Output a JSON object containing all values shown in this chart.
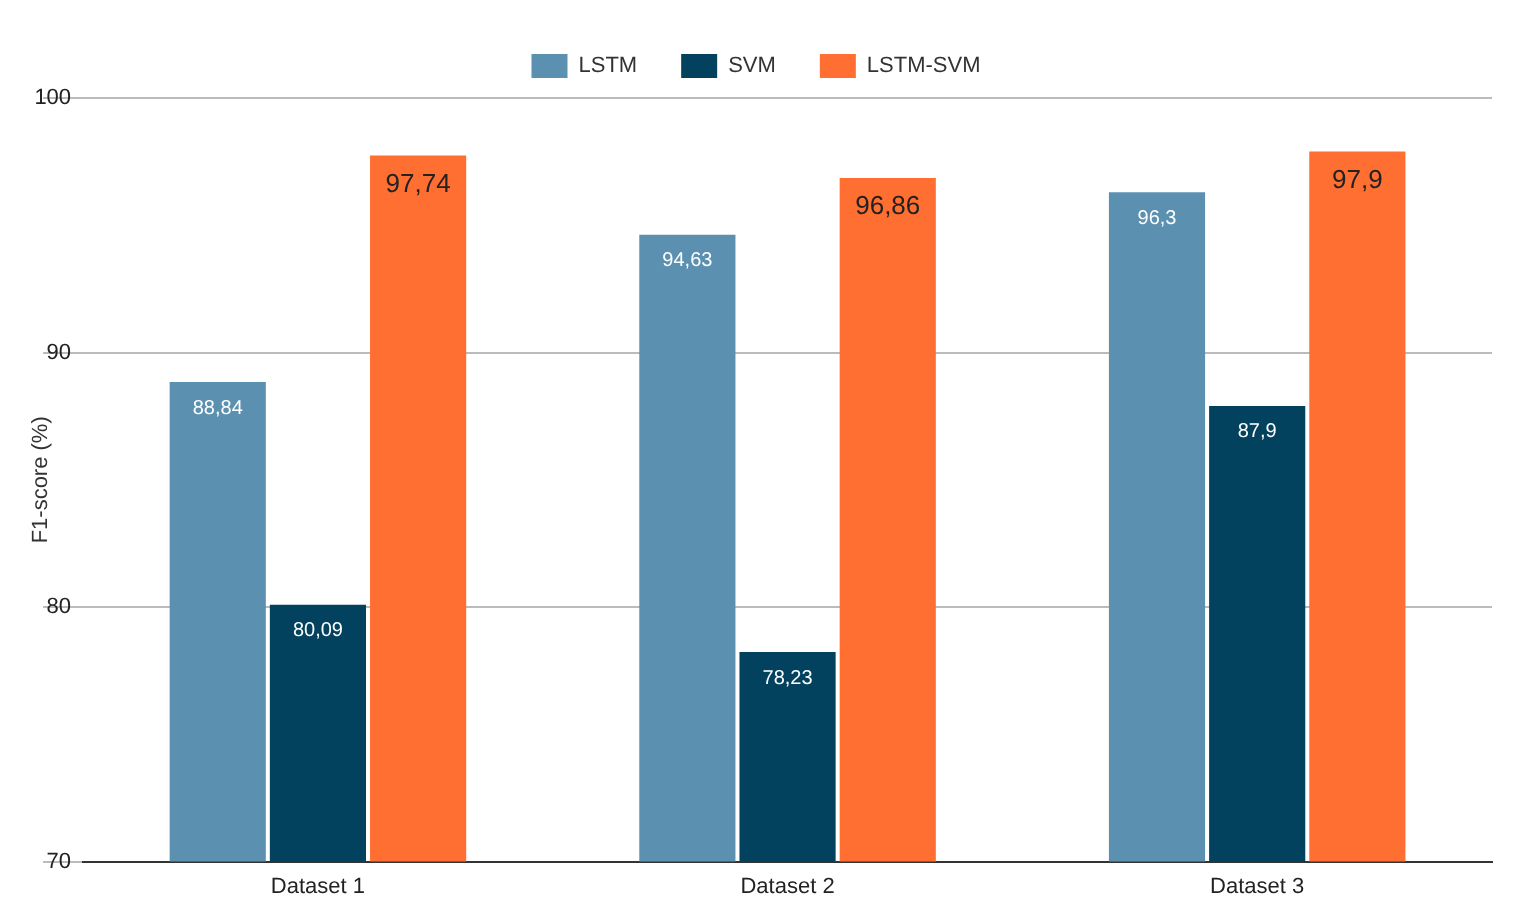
{
  "chart_data": {
    "type": "bar",
    "ylabel": "F1-score (%)",
    "categories": [
      "Dataset 1",
      "Dataset 2",
      "Dataset 3"
    ],
    "series": [
      {
        "name": "LSTM",
        "color": "#5b90b0",
        "values": [
          88.84,
          94.63,
          96.3
        ],
        "value_labels": [
          "88,84",
          "94,63",
          "96,3"
        ]
      },
      {
        "name": "SVM",
        "color": "#03425e",
        "values": [
          80.09,
          78.23,
          87.9
        ],
        "value_labels": [
          "80,09",
          "78,23",
          "87,9"
        ]
      },
      {
        "name": "LSTM-SVM",
        "color": "#ff6f31",
        "values": [
          97.74,
          96.86,
          97.9
        ],
        "value_labels": [
          "97,74",
          "96,86",
          "97,9"
        ]
      }
    ],
    "ylim": [
      70,
      100
    ],
    "yticks": [
      70,
      80,
      90,
      100
    ],
    "grid": "y",
    "legend": "top"
  }
}
